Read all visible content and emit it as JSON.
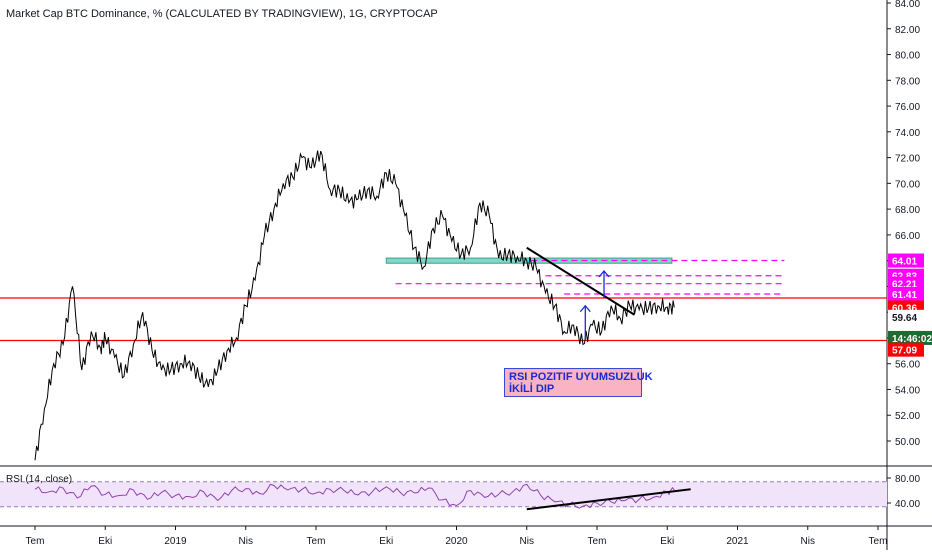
{
  "chart_data": [
    {
      "type": "line",
      "title": "Market Cap BTC Dominance, % (CALCULATED BY TRADINGVIEW), 1G, CRYPTOCAP",
      "x_tick_labels": [
        "Tem",
        "Eki",
        "2019",
        "Nis",
        "Tem",
        "Eki",
        "2020",
        "Nis",
        "Tem",
        "Eki",
        "2021",
        "Nis",
        "Tem"
      ],
      "y_tick_labels": [
        "50.00",
        "52.00",
        "54.00",
        "56.00",
        "58.00",
        "60.00",
        "62.00",
        "64.00",
        "66.00",
        "68.00",
        "70.00",
        "72.00",
        "74.00",
        "76.00",
        "78.00",
        "80.00",
        "82.00",
        "84.00"
      ],
      "ylim": [
        48.2,
        84.5
      ],
      "x_months": [
        0,
        3,
        6,
        9,
        12,
        15,
        18,
        21,
        24,
        27,
        30,
        33,
        36
      ],
      "price_series": {
        "x": [
          0,
          0.4,
          0.8,
          1.2,
          1.6,
          2.0,
          2.4,
          2.8,
          3.0,
          3.4,
          3.8,
          4.2,
          4.6,
          5.0,
          5.4,
          5.8,
          6.2,
          6.6,
          7.0,
          7.4,
          7.8,
          8.2,
          8.6,
          9.0,
          9.4,
          9.8,
          10.2,
          10.6,
          11.0,
          11.4,
          11.8,
          12.2,
          12.6,
          13.0,
          13.4,
          13.8,
          14.2,
          14.6,
          15.0,
          15.4,
          15.8,
          16.2,
          16.6,
          17.0,
          17.4,
          17.8,
          18.2,
          18.6,
          19.0,
          19.4,
          19.8,
          20.2,
          20.6,
          21.0,
          21.4,
          21.8,
          22.2,
          22.6,
          23.0,
          23.4,
          23.8,
          24.2,
          24.6,
          25.0,
          25.4,
          25.8,
          26.2,
          26.6,
          27.0,
          27.3
        ],
        "y": [
          48.5,
          52.5,
          56.0,
          57.5,
          62.0,
          55.5,
          58.5,
          57.2,
          58.0,
          56.5,
          55.0,
          57.5,
          60.0,
          57.0,
          55.5,
          55.5,
          56.0,
          56.2,
          55.0,
          54.2,
          55.5,
          57.0,
          58.0,
          60.5,
          62.5,
          66.0,
          68.0,
          70.0,
          70.5,
          72.0,
          71.2,
          72.5,
          69.5,
          69.5,
          68.5,
          68.8,
          69.5,
          69.0,
          70.8,
          70.0,
          67.5,
          65.0,
          63.5,
          66.5,
          67.5,
          65.5,
          64.5,
          65.0,
          68.5,
          67.5,
          64.2,
          64.5,
          64.3,
          64.0,
          63.5,
          61.5,
          60.5,
          58.5,
          59.0,
          57.5,
          59.0,
          58.5,
          60.5,
          59.5,
          60.5,
          60.2,
          60.3,
          60.5,
          60.4,
          60.36
        ]
      },
      "horizontal_lines": [
        {
          "y": 61.1,
          "color": "#ff0000"
        },
        {
          "y": 57.8,
          "color": "#ff0000"
        }
      ],
      "dashed_levels": [
        {
          "y": 64.01,
          "x_start": 21.2,
          "x_end": 32.0,
          "color": "#ff00ff"
        },
        {
          "y": 62.83,
          "x_start": 21.8,
          "x_end": 32.0,
          "color": "#ff00ff"
        },
        {
          "y": 62.21,
          "x_start": 15.4,
          "x_end": 32.0,
          "color": "#ff00ff"
        },
        {
          "y": 61.41,
          "x_start": 22.6,
          "x_end": 32.0,
          "color": "#ff00ff"
        }
      ],
      "support_zone": {
        "y_top": 64.2,
        "y_bottom": 63.8,
        "x_start": 15.0,
        "x_end": 27.2,
        "color": "#7fd8c8"
      },
      "trendline": {
        "x": [
          21.0,
          25.6
        ],
        "y": 65.0,
        "y2": 59.8,
        "color": "#000000"
      },
      "arrows": [
        {
          "x": 23.5,
          "y_from": 57.8,
          "y_to": 60.5,
          "color": "#1b2bd1"
        },
        {
          "x": 24.3,
          "y_from": 61.1,
          "y_to": 63.2,
          "color": "#1b2bd1"
        }
      ],
      "price_labels": [
        {
          "text": "64.01",
          "bg": "#ff00ff",
          "fg": "#ffffff",
          "y": 64.01
        },
        {
          "text": "62.83",
          "bg": "#ff00ff",
          "fg": "#ffffff",
          "y": 62.83
        },
        {
          "text": "62.21",
          "bg": "#ff00ff",
          "fg": "#ffffff",
          "y": 62.21
        },
        {
          "text": "61.41",
          "bg": "#ff00ff",
          "fg": "#ffffff",
          "y": 61.41
        },
        {
          "text": "60.36",
          "bg": "#ff0000",
          "fg": "#ffffff",
          "y": 60.36
        },
        {
          "text": "59.64",
          "bg": "#ffffff",
          "fg": "#131722",
          "y": 59.64
        },
        {
          "text": "14:46:02",
          "bg": "#1e6b2f",
          "fg": "#ffffff",
          "y": 58.0
        },
        {
          "text": "57.09",
          "bg": "#ff0000",
          "fg": "#ffffff",
          "y": 57.09
        }
      ],
      "annotation": [
        "RSI POZITIF UYUMSUZLUK",
        "İKİLİ DIP"
      ]
    },
    {
      "type": "line",
      "title": "RSI (14, close)",
      "y_tick_labels": [
        "40.00",
        "80.00"
      ],
      "ylim": [
        25,
        90
      ],
      "band": [
        30,
        70
      ],
      "rsi_series": {
        "x": [
          0,
          0.6,
          1.2,
          1.8,
          2.4,
          3.0,
          3.6,
          4.2,
          4.8,
          5.4,
          6.0,
          6.6,
          7.2,
          7.8,
          8.4,
          9.0,
          9.6,
          10.2,
          10.8,
          11.4,
          12.0,
          12.6,
          13.2,
          13.8,
          14.4,
          15.0,
          15.6,
          16.2,
          16.8,
          17.4,
          18.0,
          18.6,
          19.2,
          19.8,
          20.4,
          21.0,
          21.6,
          22.2,
          22.8,
          23.4,
          24.0,
          24.6,
          25.2,
          25.8,
          26.4,
          27.0,
          27.3
        ],
        "y": [
          62,
          58,
          64,
          48,
          67,
          54,
          52,
          61,
          46,
          57,
          52,
          50,
          58,
          44,
          60,
          63,
          55,
          68,
          61,
          62,
          56,
          62,
          60,
          53,
          58,
          66,
          57,
          56,
          64,
          45,
          36,
          60,
          49,
          54,
          58,
          70,
          52,
          42,
          37,
          35,
          40,
          42,
          44,
          46,
          49,
          58,
          61
        ]
      },
      "trendline": {
        "x": [
          21.0,
          28.0
        ],
        "y": 30,
        "y2": 62,
        "color": "#000000"
      }
    }
  ]
}
